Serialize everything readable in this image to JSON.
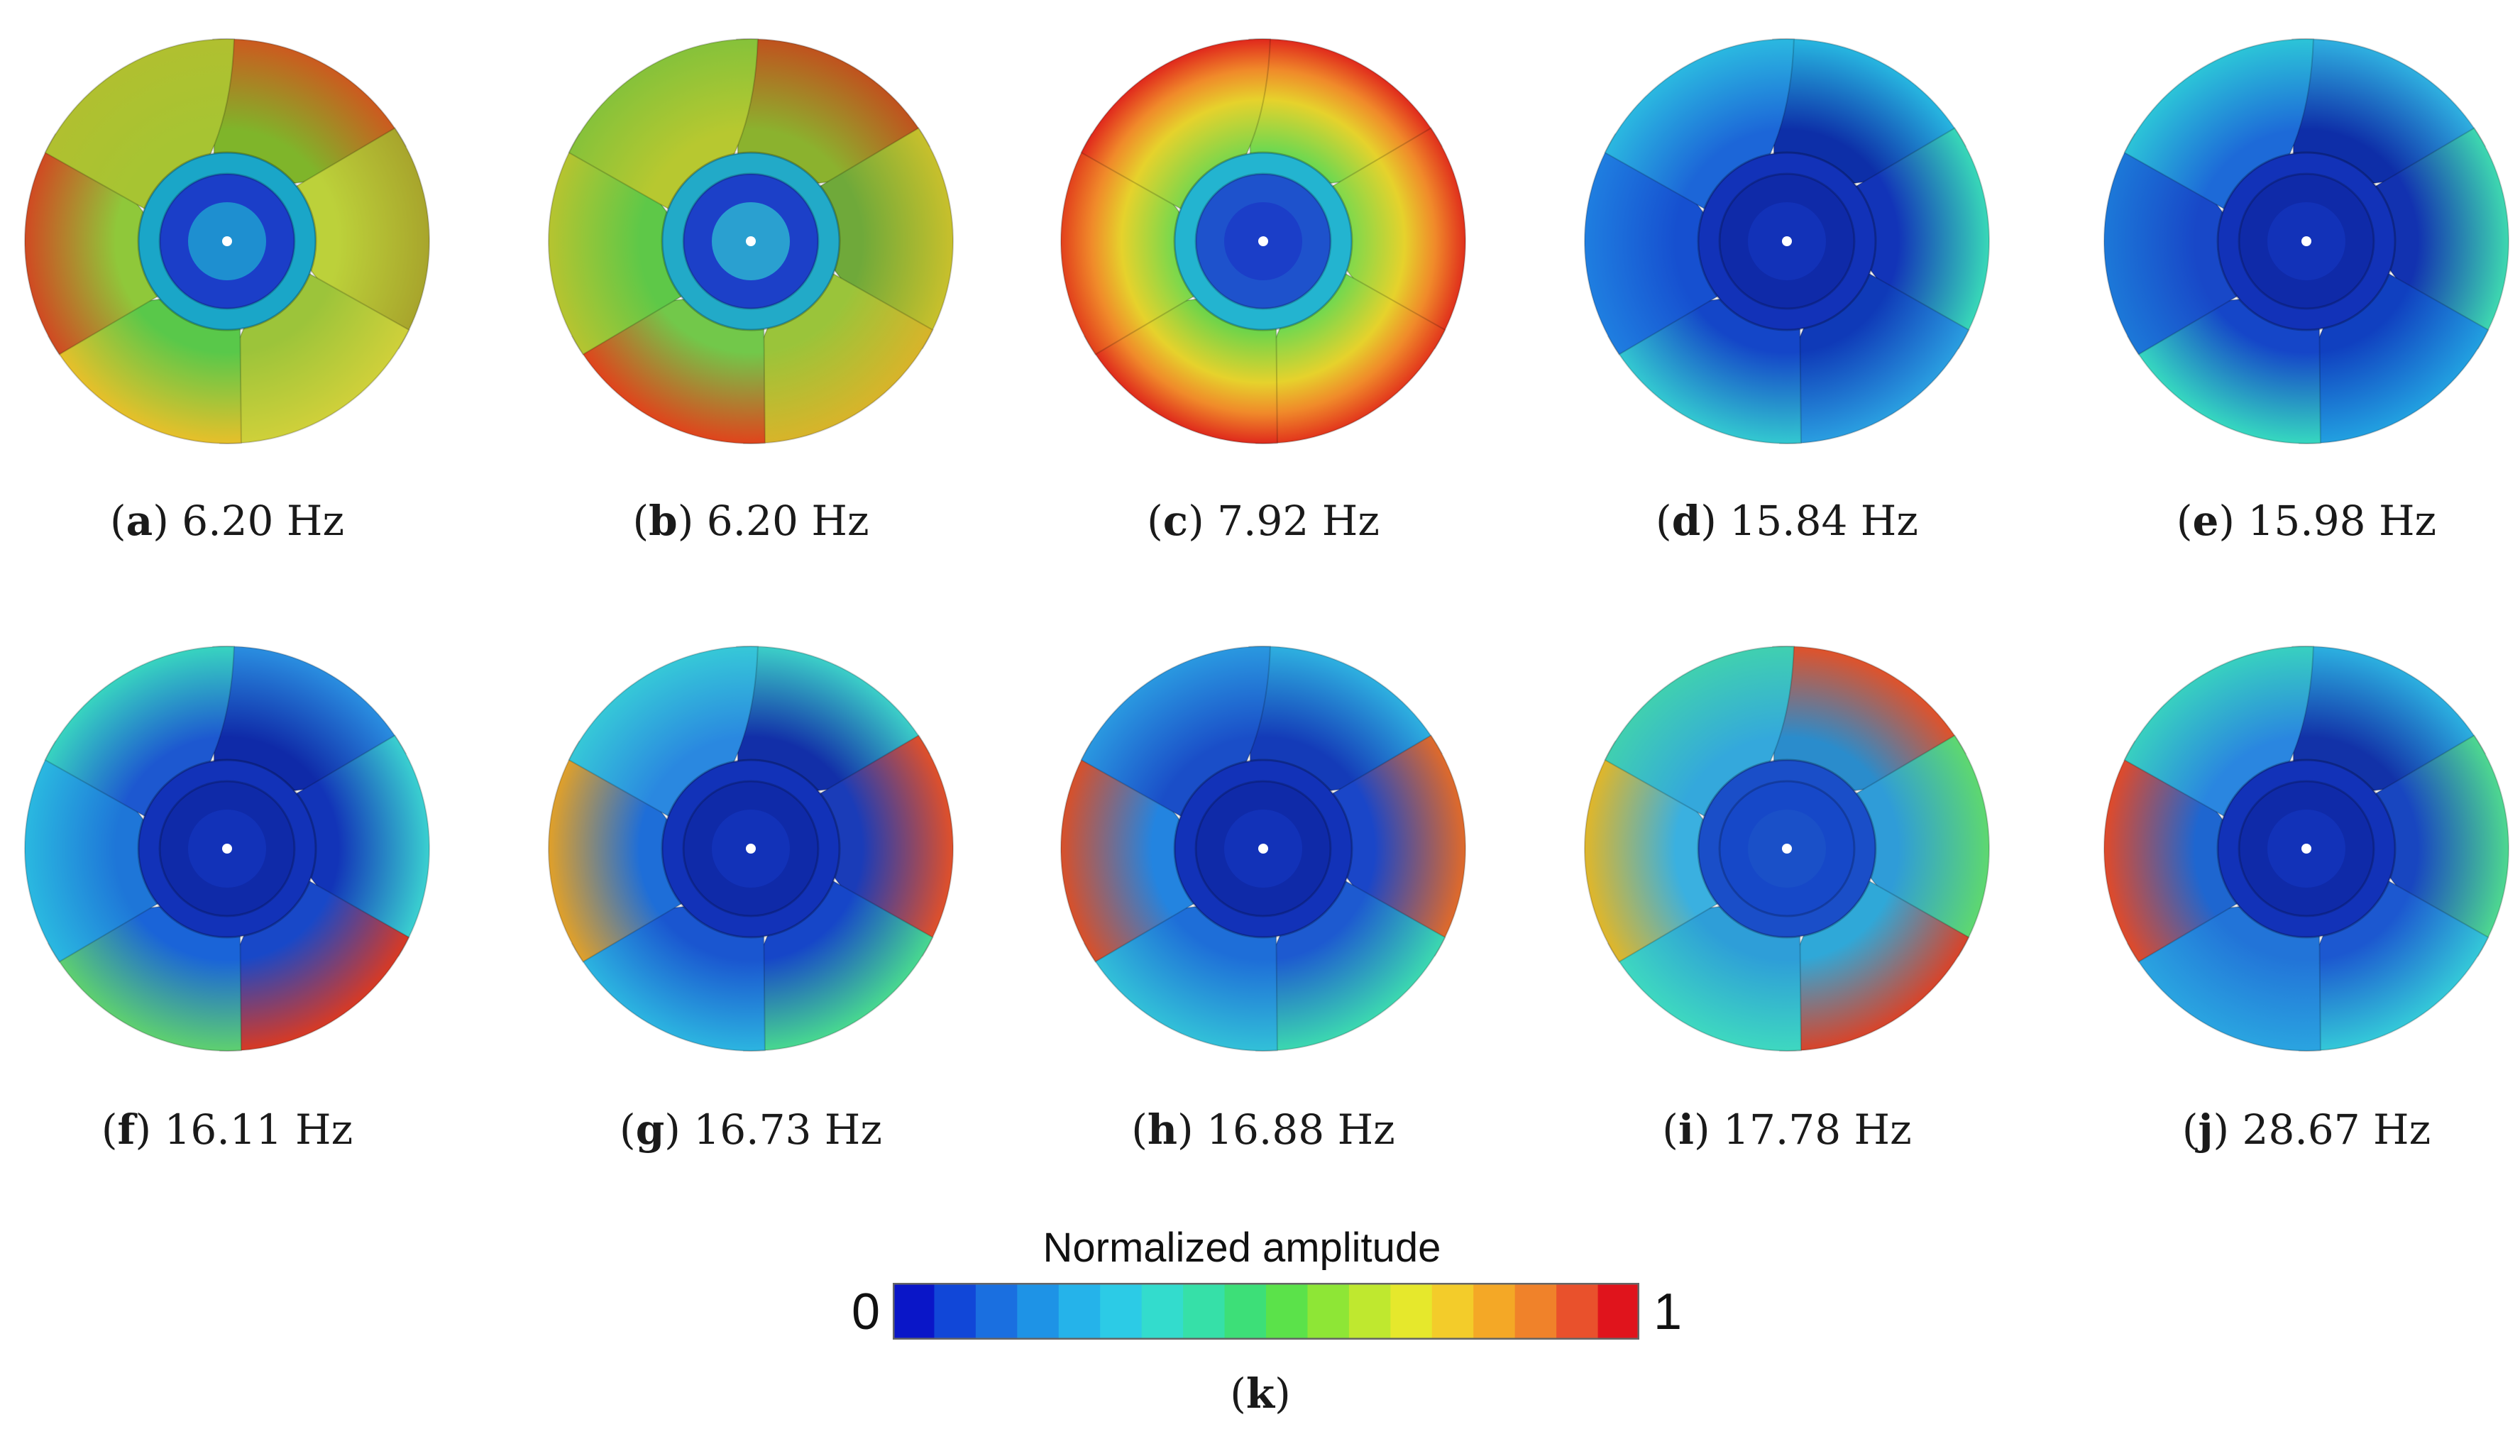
{
  "panels": [
    {
      "letter": "a",
      "freq": "6.20 Hz",
      "scheme": "warm-a"
    },
    {
      "letter": "b",
      "freq": "6.20 Hz",
      "scheme": "warm-b"
    },
    {
      "letter": "c",
      "freq": "7.92 Hz",
      "scheme": "ring"
    },
    {
      "letter": "d",
      "freq": "15.84 Hz",
      "scheme": "cool-d"
    },
    {
      "letter": "e",
      "freq": "15.98 Hz",
      "scheme": "cool-e"
    },
    {
      "letter": "f",
      "freq": "16.11 Hz",
      "scheme": "cool-f"
    },
    {
      "letter": "g",
      "freq": "16.73 Hz",
      "scheme": "cool-g"
    },
    {
      "letter": "h",
      "freq": "16.88 Hz",
      "scheme": "cool-h"
    },
    {
      "letter": "i",
      "freq": "17.78 Hz",
      "scheme": "cool-i"
    },
    {
      "letter": "j",
      "freq": "28.67 Hz",
      "scheme": "cool-j"
    }
  ],
  "colorbar": {
    "title": "Normalized amplitude",
    "min_label": "0",
    "max_label": "1",
    "colors": [
      "#0a16c8",
      "#1147d8",
      "#1a6fe0",
      "#1e93e6",
      "#25b3ea",
      "#2ccbe6",
      "#33dccd",
      "#36e0a8",
      "#3ddf78",
      "#5be24a",
      "#8ee636",
      "#bfe82f",
      "#e6e82c",
      "#f3cc2a",
      "#f4a826",
      "#f0822a",
      "#e9512c",
      "#e0141c"
    ]
  },
  "k_caption": {
    "letter": "k"
  }
}
